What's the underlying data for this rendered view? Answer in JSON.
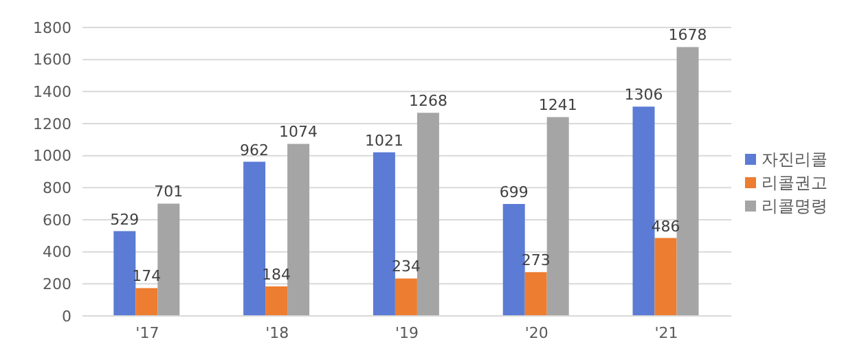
{
  "chart_data": {
    "type": "bar",
    "categories": [
      "'17",
      "'18",
      "'19",
      "'20",
      "'21"
    ],
    "series": [
      {
        "name": "자진리콜",
        "color": "#5b7bd5",
        "values": [
          529,
          962,
          1021,
          699,
          1306
        ]
      },
      {
        "name": "리콜권고",
        "color": "#ed7d31",
        "values": [
          174,
          184,
          234,
          273,
          486
        ]
      },
      {
        "name": "리콜명령",
        "color": "#a5a5a5",
        "values": [
          701,
          1074,
          1268,
          1241,
          1678
        ]
      }
    ],
    "ylim": [
      0,
      1800
    ],
    "yticks": [
      0,
      200,
      400,
      600,
      800,
      1000,
      1200,
      1400,
      1600,
      1800
    ],
    "grid": "y",
    "legend": "right",
    "data_labels": true
  }
}
